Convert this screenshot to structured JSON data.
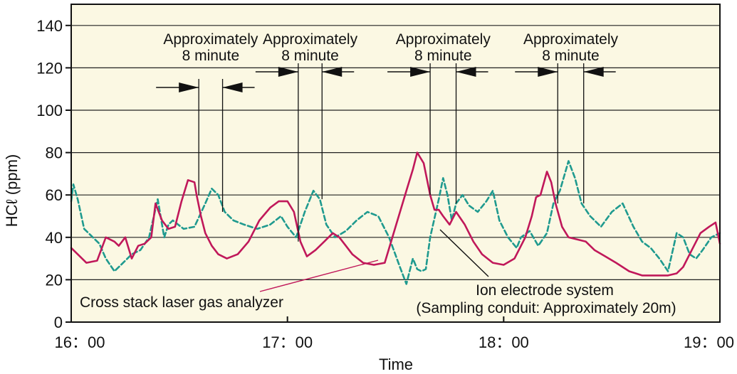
{
  "chart_data": {
    "type": "line",
    "title": "",
    "xlabel": "Time",
    "ylabel": "HCℓ (ppm)",
    "ylim": [
      0,
      150
    ],
    "yticks": [
      0,
      20,
      40,
      60,
      80,
      100,
      120,
      140
    ],
    "xlim_hours": [
      16,
      19
    ],
    "xticks": [
      {
        "value": 16,
        "label": "16：00"
      },
      {
        "value": 17,
        "label": "17：00"
      },
      {
        "value": 18,
        "label": "18：00"
      },
      {
        "value": 19,
        "label": "19：00"
      }
    ],
    "grid": "horizontal",
    "plot_background": "#fbf8e3",
    "series": [
      {
        "name": "Cross stack laser gas analyzer",
        "color": "#c0185a",
        "style": "solid",
        "x": [
          16.0,
          16.03,
          16.07,
          16.12,
          16.16,
          16.2,
          16.22,
          16.25,
          16.28,
          16.31,
          16.34,
          16.37,
          16.39,
          16.42,
          16.45,
          16.48,
          16.51,
          16.54,
          16.57,
          16.58,
          16.6,
          16.62,
          16.65,
          16.68,
          16.72,
          16.77,
          16.82,
          16.87,
          16.92,
          16.96,
          17.0,
          17.03,
          17.06,
          17.09,
          17.13,
          17.17,
          17.21,
          17.24,
          17.27,
          17.3,
          17.35,
          17.4,
          17.45,
          17.5,
          17.55,
          17.58,
          17.6,
          17.63,
          17.66,
          17.68,
          17.7,
          17.72,
          17.75,
          17.78,
          17.82,
          17.86,
          17.9,
          17.95,
          18.0,
          18.05,
          18.1,
          18.13,
          18.15,
          18.17,
          18.2,
          18.22,
          18.24,
          18.27,
          18.3,
          18.34,
          18.38,
          18.42,
          18.47,
          18.52,
          18.58,
          18.64,
          18.7,
          18.76,
          18.8,
          18.83,
          18.87,
          18.91,
          18.95,
          18.98,
          19.0
        ],
        "y": [
          35,
          32,
          28,
          29,
          40,
          38,
          36,
          40,
          30,
          36,
          37,
          40,
          56,
          48,
          44,
          45,
          57,
          67,
          66,
          60,
          50,
          42,
          36,
          32,
          30,
          32,
          38,
          48,
          54,
          57,
          57,
          52,
          38,
          31,
          34,
          38,
          42,
          40,
          36,
          32,
          28,
          27,
          28,
          45,
          62,
          72,
          80,
          75,
          60,
          53,
          53,
          50,
          46,
          52,
          46,
          38,
          32,
          28,
          27,
          30,
          40,
          50,
          59,
          60,
          71,
          66,
          56,
          45,
          40,
          39,
          38,
          34,
          31,
          28,
          24,
          22,
          22,
          22,
          23,
          26,
          34,
          42,
          45,
          47,
          37
        ]
      },
      {
        "name": "Ion electrode system",
        "color": "#1f9a8f",
        "style": "dashed",
        "x": [
          16.0,
          16.01,
          16.03,
          16.06,
          16.1,
          16.13,
          16.16,
          16.2,
          16.24,
          16.28,
          16.32,
          16.36,
          16.4,
          16.43,
          16.45,
          16.47,
          16.52,
          16.57,
          16.62,
          16.65,
          16.68,
          16.71,
          16.75,
          16.8,
          16.86,
          16.92,
          16.97,
          17.0,
          17.04,
          17.08,
          17.12,
          17.15,
          17.18,
          17.22,
          17.27,
          17.32,
          17.37,
          17.42,
          17.47,
          17.52,
          17.55,
          17.58,
          17.6,
          17.62,
          17.64,
          17.66,
          17.7,
          17.72,
          17.74,
          17.76,
          17.78,
          17.81,
          17.84,
          17.88,
          17.92,
          17.95,
          17.98,
          18.02,
          18.06,
          18.08,
          18.12,
          18.16,
          18.2,
          18.23,
          18.26,
          18.3,
          18.33,
          18.36,
          18.4,
          18.45,
          18.5,
          18.55,
          18.6,
          18.64,
          18.68,
          18.72,
          18.76,
          18.8,
          18.83,
          18.86,
          18.89,
          18.92,
          18.96,
          19.0
        ],
        "y": [
          57,
          65,
          58,
          44,
          40,
          37,
          30,
          24,
          28,
          32,
          34,
          40,
          58,
          40,
          46,
          48,
          44,
          45,
          56,
          63,
          60,
          52,
          48,
          46,
          44,
          46,
          50,
          45,
          40,
          52,
          62,
          58,
          46,
          40,
          43,
          48,
          52,
          50,
          40,
          26,
          18,
          30,
          25,
          24,
          25,
          40,
          58,
          68,
          60,
          48,
          56,
          60,
          55,
          52,
          57,
          62,
          48,
          40,
          35,
          40,
          43,
          36,
          42,
          56,
          62,
          76,
          68,
          56,
          50,
          45,
          52,
          56,
          45,
          38,
          35,
          30,
          24,
          42,
          40,
          32,
          30,
          34,
          40,
          42
        ]
      }
    ],
    "annotations": [
      {
        "text_line1": "Approximately",
        "text_line2": "8 minute",
        "x_left": 16.59,
        "x_right": 16.7
      },
      {
        "text_line1": "Approximately",
        "text_line2": "8 minute",
        "x_left": 17.05,
        "x_right": 17.16
      },
      {
        "text_line1": "Approximately",
        "text_line2": "8 minute",
        "x_left": 17.66,
        "x_right": 17.78
      },
      {
        "text_line1": "Approximately",
        "text_line2": "8 minute",
        "x_left": 18.25,
        "x_right": 18.37
      }
    ],
    "labels": {
      "laser": "Cross stack laser gas analyzer",
      "ion_line1": "Ion electrode system",
      "ion_line2": "(Sampling conduit: Approximately 20m)"
    }
  }
}
